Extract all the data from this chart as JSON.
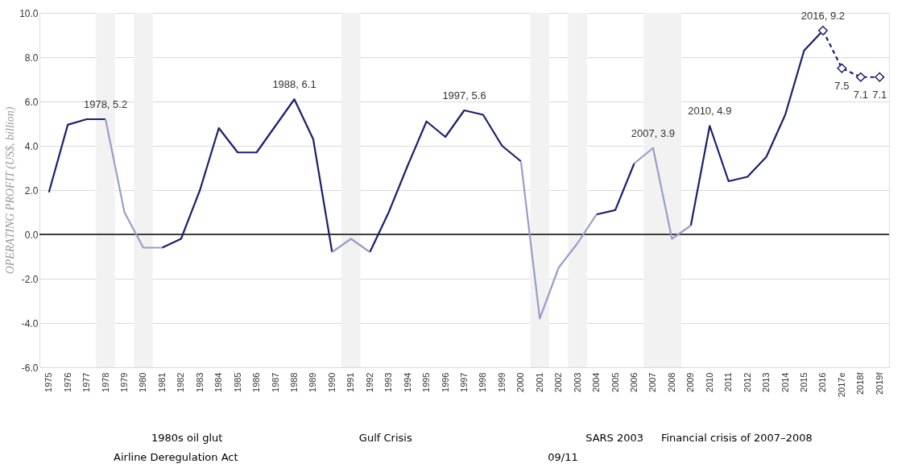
{
  "chart_data": {
    "type": "line",
    "ylabel": "OPERATING PROFIT (US$, billion)",
    "categories": [
      "1975",
      "1976",
      "1977",
      "1978",
      "1979",
      "1980",
      "1981",
      "1982",
      "1983",
      "1984",
      "1985",
      "1986",
      "1987",
      "1988",
      "1989",
      "1990",
      "1991",
      "1992",
      "1993",
      "1994",
      "1995",
      "1996",
      "1997",
      "1998",
      "1999",
      "2000",
      "2001",
      "2002",
      "2003",
      "2004",
      "2005",
      "2006",
      "2007",
      "2008",
      "2009",
      "2010",
      "2011",
      "2012",
      "2013",
      "2014",
      "2015",
      "2016",
      "2017e",
      "2018f",
      "2019f"
    ],
    "series": [
      {
        "color": "#1b1f6e",
        "values": [
          1.9,
          4.95,
          5.2,
          5.2,
          null,
          null,
          -0.6,
          -0.2,
          2.0,
          4.8,
          3.7,
          3.7,
          4.9,
          6.1,
          4.3,
          -0.8,
          null,
          -0.8,
          1.0,
          3.1,
          5.1,
          4.4,
          5.6,
          5.4,
          4.0,
          3.3,
          null,
          null,
          null,
          0.9,
          1.1,
          3.2,
          null,
          null,
          0.4,
          4.9,
          2.4,
          2.6,
          3.5,
          5.4,
          8.3,
          9.2,
          null,
          null,
          null
        ]
      },
      {
        "color": "#9c9cc8",
        "values": [
          null,
          null,
          null,
          5.2,
          1.0,
          -0.6,
          -0.6,
          null,
          null,
          null,
          null,
          null,
          null,
          null,
          null,
          -0.8,
          -0.2,
          -0.8,
          null,
          null,
          null,
          null,
          null,
          null,
          null,
          3.3,
          -3.8,
          -1.5,
          -0.4,
          0.9,
          null,
          3.2,
          3.9,
          -0.2,
          0.4,
          null,
          null,
          null,
          null,
          null,
          null,
          null,
          null,
          null,
          null
        ]
      },
      {
        "color": "#1b1f6e",
        "line_style": "dashed",
        "marker": "diamond",
        "values": [
          null,
          null,
          null,
          null,
          null,
          null,
          null,
          null,
          null,
          null,
          null,
          null,
          null,
          null,
          null,
          null,
          null,
          null,
          null,
          null,
          null,
          null,
          null,
          null,
          null,
          null,
          null,
          null,
          null,
          null,
          null,
          null,
          null,
          null,
          null,
          null,
          null,
          null,
          null,
          null,
          null,
          9.2,
          7.5,
          7.1,
          7.1
        ],
        "value_labels": [
          null,
          null,
          null,
          null,
          null,
          null,
          null,
          null,
          null,
          null,
          null,
          null,
          null,
          null,
          null,
          null,
          null,
          null,
          null,
          null,
          null,
          null,
          null,
          null,
          null,
          null,
          null,
          null,
          null,
          null,
          null,
          null,
          null,
          null,
          null,
          null,
          null,
          null,
          null,
          null,
          null,
          null,
          "7.5",
          "7.1",
          "7.1"
        ]
      }
    ],
    "ylim": [
      -6,
      10
    ],
    "yticks": [
      {
        "value": -6,
        "label": "-6.0"
      },
      {
        "value": -4,
        "label": "-4.0"
      },
      {
        "value": -2,
        "label": "-2.0"
      },
      {
        "value": 0,
        "label": "0.0"
      },
      {
        "value": 2,
        "label": "2.0"
      },
      {
        "value": 4,
        "label": "4.0"
      },
      {
        "value": 6,
        "label": "6.0"
      },
      {
        "value": 8,
        "label": "8.0"
      },
      {
        "value": 10,
        "label": "10.0"
      }
    ],
    "grid": "y",
    "ref_lines": [
      {
        "axis": "y",
        "value": 0,
        "color": "#000000"
      }
    ],
    "bands": [
      {
        "axis": "x",
        "from": "1978",
        "to": "1978",
        "color": "#f2f2f2"
      },
      {
        "axis": "x",
        "from": "1980",
        "to": "1980",
        "color": "#f2f2f2"
      },
      {
        "axis": "x",
        "from": "1991",
        "to": "1991",
        "color": "#f2f2f2"
      },
      {
        "axis": "x",
        "from": "2001",
        "to": "2001",
        "color": "#f2f2f2"
      },
      {
        "axis": "x",
        "from": "2003",
        "to": "2003",
        "color": "#f2f2f2"
      },
      {
        "axis": "x",
        "from": "2007",
        "to": "2008",
        "color": "#f2f2f2"
      }
    ],
    "annotations": [
      {
        "text": "1978, 5.2",
        "x": "1978",
        "y": 5.2
      },
      {
        "text": "1988, 6.1",
        "x": "1988",
        "y": 6.1
      },
      {
        "text": "1997, 5.6",
        "x": "1997",
        "y": 5.6
      },
      {
        "text": "2007, 3.9",
        "x": "2007",
        "y": 3.9
      },
      {
        "text": "2010, 4.9",
        "x": "2010",
        "y": 4.9
      },
      {
        "text": "2016, 9.2",
        "x": "2016",
        "y": 9.2
      },
      "Airline Deregulation Act",
      "1980s oil glut",
      "Gulf Crisis",
      "09/11",
      "SARS 2003",
      "Financial crisis of 2007–2008"
    ]
  }
}
